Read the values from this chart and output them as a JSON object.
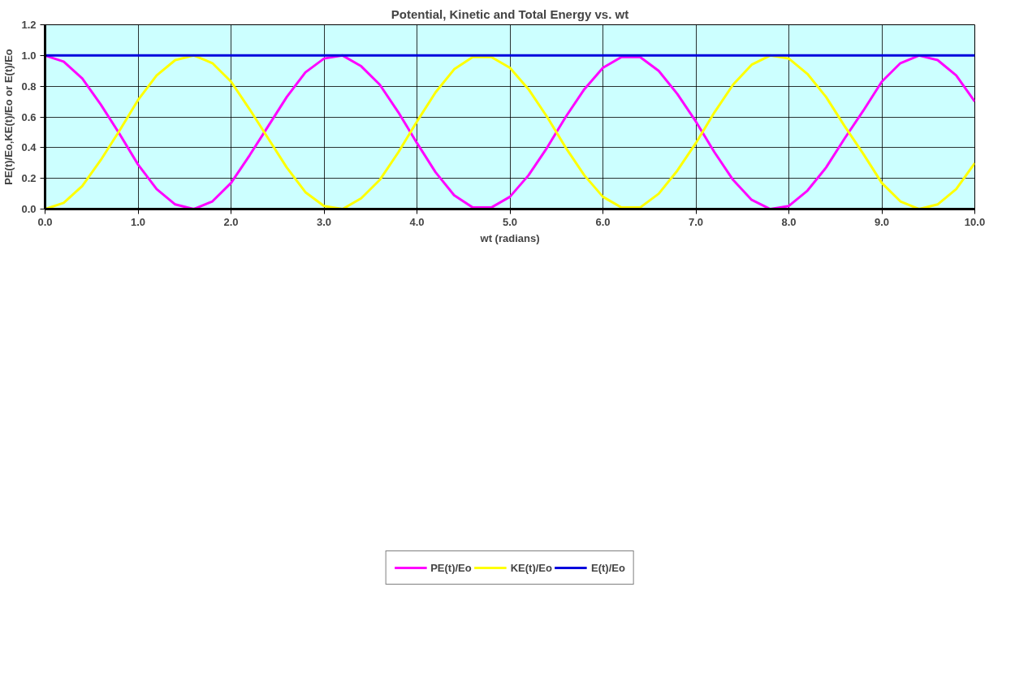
{
  "chart_data": {
    "type": "line",
    "title": "Potential, Kinetic and Total Energy vs. wt",
    "xlabel": "wt (radians)",
    "ylabel": "PE(t)/Eo,KE(t)/Eo or E(t)/Eo",
    "x": [
      0,
      0.2,
      0.4,
      0.6,
      0.8,
      1.0,
      1.2,
      1.4,
      1.6,
      1.8,
      2.0,
      2.2,
      2.4,
      2.6,
      2.8,
      3.0,
      3.2,
      3.4,
      3.6,
      3.8,
      4.0,
      4.2,
      4.4,
      4.6,
      4.8,
      5.0,
      5.2,
      5.4,
      5.6,
      5.8,
      6.0,
      6.2,
      6.4,
      6.6,
      6.8,
      7.0,
      7.2,
      7.4,
      7.6,
      7.8,
      8.0,
      8.2,
      8.4,
      8.6,
      8.8,
      9.0,
      9.2,
      9.4,
      9.6,
      9.8,
      10.0
    ],
    "series": [
      {
        "name": "PE(t)/Eo",
        "color": "#ff00ff",
        "values": [
          1.0,
          0.96,
          0.85,
          0.68,
          0.49,
          0.29,
          0.13,
          0.03,
          0.0,
          0.05,
          0.17,
          0.35,
          0.54,
          0.73,
          0.89,
          0.98,
          1.0,
          0.93,
          0.81,
          0.63,
          0.43,
          0.24,
          0.09,
          0.01,
          0.01,
          0.08,
          0.22,
          0.4,
          0.6,
          0.78,
          0.92,
          0.99,
          0.99,
          0.9,
          0.75,
          0.57,
          0.37,
          0.19,
          0.06,
          0.0,
          0.02,
          0.12,
          0.27,
          0.46,
          0.64,
          0.83,
          0.95,
          1.0,
          0.97,
          0.87,
          0.7
        ]
      },
      {
        "name": "KE(t)/Eo",
        "color": "#ffff00",
        "values": [
          0.0,
          0.04,
          0.15,
          0.32,
          0.51,
          0.71,
          0.87,
          0.97,
          1.0,
          0.95,
          0.83,
          0.65,
          0.46,
          0.27,
          0.11,
          0.02,
          0.0,
          0.07,
          0.19,
          0.37,
          0.57,
          0.76,
          0.91,
          0.99,
          0.99,
          0.92,
          0.78,
          0.6,
          0.4,
          0.22,
          0.08,
          0.01,
          0.01,
          0.1,
          0.25,
          0.43,
          0.63,
          0.81,
          0.94,
          1.0,
          0.98,
          0.88,
          0.73,
          0.54,
          0.36,
          0.17,
          0.05,
          0.0,
          0.03,
          0.13,
          0.3
        ]
      },
      {
        "name": "E(t)/Eo",
        "color": "#0000dd",
        "x": [
          0,
          10.0
        ],
        "values": [
          1.0,
          1.0
        ]
      }
    ],
    "xlim": [
      0,
      10
    ],
    "ylim": [
      0,
      1.2
    ],
    "xticks": [
      {
        "value": 0,
        "label": "0.0"
      },
      {
        "value": 1,
        "label": "1.0"
      },
      {
        "value": 2,
        "label": "2.0"
      },
      {
        "value": 3,
        "label": "3.0"
      },
      {
        "value": 4,
        "label": "4.0"
      },
      {
        "value": 5,
        "label": "5.0"
      },
      {
        "value": 6,
        "label": "6.0"
      },
      {
        "value": 7,
        "label": "7.0"
      },
      {
        "value": 8,
        "label": "8.0"
      },
      {
        "value": 9,
        "label": "9.0"
      },
      {
        "value": 10,
        "label": "10.0"
      }
    ],
    "yticks": [
      {
        "value": 0,
        "label": "0.0"
      },
      {
        "value": 0.2,
        "label": "0.2"
      },
      {
        "value": 0.4,
        "label": "0.4"
      },
      {
        "value": 0.6,
        "label": "0.6"
      },
      {
        "value": 0.8,
        "label": "0.8"
      },
      {
        "value": 1.0,
        "label": "1.0"
      },
      {
        "value": 1.2,
        "label": "1.2"
      }
    ],
    "grid": true,
    "legend": "bottom",
    "marker": "none",
    "line_style": "solid"
  }
}
